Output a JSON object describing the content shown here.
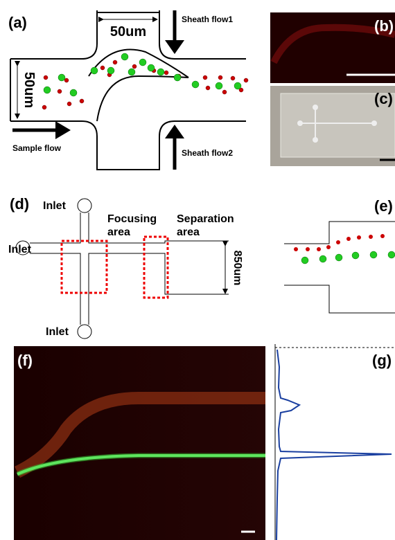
{
  "panels": {
    "a": {
      "label": "(a)",
      "top_width": "50um",
      "side_width": "50um",
      "sheath1": "Sheath flow1",
      "sheath2": "Sheath flow2",
      "sample": "Sample flow"
    },
    "b": {
      "label": "(b)"
    },
    "c": {
      "label": "(c)"
    },
    "d": {
      "label": "(d)",
      "inlet_top": "Inlet",
      "inlet_left": "Inlet",
      "inlet_bottom": "Inlet",
      "focusing": [
        "Focusing",
        "area"
      ],
      "separation": [
        "Separation",
        "area"
      ],
      "width": "850um"
    },
    "e": {
      "label": "(e)"
    },
    "f": {
      "label": "(f)"
    },
    "g": {
      "label": "(g)"
    }
  }
}
